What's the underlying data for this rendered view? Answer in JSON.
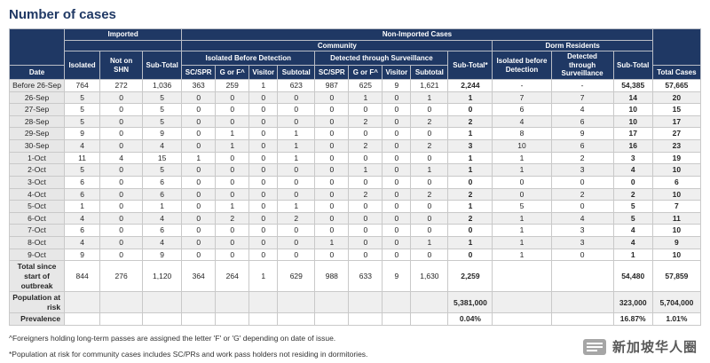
{
  "page": {
    "title": "Number of cases"
  },
  "colors": {
    "header_navy": "#1f3864",
    "title_blue": "#1f3864",
    "row_alt_grey": "#efefef",
    "date_column_grey": "#e7e7e7"
  },
  "table": {
    "header": {
      "date_label": "Date",
      "imported_label": "Imported",
      "non_imported_label": "Non-Imported Cases",
      "community_label": "Community",
      "dorm_label": "Dorm Residents",
      "total_cases_label": "Total Cases",
      "imported_cols": [
        "Isolated",
        "Not on SHN",
        "Sub-Total"
      ],
      "community_group_1": "Isolated Before Detection",
      "community_group_2": "Detected through Surveillance",
      "community_subtotal_label": "Sub-Total*",
      "breakdown_cols": [
        "SC/SPR",
        "G or F^",
        "Visitor",
        "Subtotal"
      ],
      "dorm_cols": [
        "Isolated before Detection",
        "Detected through Surveillance",
        "Sub-Total"
      ]
    },
    "rows": [
      {
        "date": "Before 26-Sep",
        "cells": [
          "764",
          "272",
          "1,036",
          "363",
          "259",
          "1",
          "623",
          "987",
          "625",
          "9",
          "1,621",
          "2,244",
          "-",
          "-",
          "54,385",
          "57,665"
        ]
      },
      {
        "date": "26-Sep",
        "cells": [
          "5",
          "0",
          "5",
          "0",
          "0",
          "0",
          "0",
          "0",
          "1",
          "0",
          "1",
          "1",
          "7",
          "7",
          "14",
          "20"
        ]
      },
      {
        "date": "27-Sep",
        "cells": [
          "5",
          "0",
          "5",
          "0",
          "0",
          "0",
          "0",
          "0",
          "0",
          "0",
          "0",
          "0",
          "6",
          "4",
          "10",
          "15"
        ]
      },
      {
        "date": "28-Sep",
        "cells": [
          "5",
          "0",
          "5",
          "0",
          "0",
          "0",
          "0",
          "0",
          "2",
          "0",
          "2",
          "2",
          "4",
          "6",
          "10",
          "17"
        ]
      },
      {
        "date": "29-Sep",
        "cells": [
          "9",
          "0",
          "9",
          "0",
          "1",
          "0",
          "1",
          "0",
          "0",
          "0",
          "0",
          "1",
          "8",
          "9",
          "17",
          "27"
        ]
      },
      {
        "date": "30-Sep",
        "cells": [
          "4",
          "0",
          "4",
          "0",
          "1",
          "0",
          "1",
          "0",
          "2",
          "0",
          "2",
          "3",
          "10",
          "6",
          "16",
          "23"
        ]
      },
      {
        "date": "1-Oct",
        "cells": [
          "11",
          "4",
          "15",
          "1",
          "0",
          "0",
          "1",
          "0",
          "0",
          "0",
          "0",
          "1",
          "1",
          "2",
          "3",
          "19"
        ]
      },
      {
        "date": "2-Oct",
        "cells": [
          "5",
          "0",
          "5",
          "0",
          "0",
          "0",
          "0",
          "0",
          "1",
          "0",
          "1",
          "1",
          "1",
          "3",
          "4",
          "10"
        ]
      },
      {
        "date": "3-Oct",
        "cells": [
          "6",
          "0",
          "6",
          "0",
          "0",
          "0",
          "0",
          "0",
          "0",
          "0",
          "0",
          "0",
          "0",
          "0",
          "0",
          "6"
        ]
      },
      {
        "date": "4-Oct",
        "cells": [
          "6",
          "0",
          "6",
          "0",
          "0",
          "0",
          "0",
          "0",
          "2",
          "0",
          "2",
          "2",
          "0",
          "2",
          "2",
          "10"
        ]
      },
      {
        "date": "5-Oct",
        "cells": [
          "1",
          "0",
          "1",
          "0",
          "1",
          "0",
          "1",
          "0",
          "0",
          "0",
          "0",
          "1",
          "5",
          "0",
          "5",
          "7"
        ]
      },
      {
        "date": "6-Oct",
        "cells": [
          "4",
          "0",
          "4",
          "0",
          "2",
          "0",
          "2",
          "0",
          "0",
          "0",
          "0",
          "2",
          "1",
          "4",
          "5",
          "11"
        ]
      },
      {
        "date": "7-Oct",
        "cells": [
          "6",
          "0",
          "6",
          "0",
          "0",
          "0",
          "0",
          "0",
          "0",
          "0",
          "0",
          "0",
          "1",
          "3",
          "4",
          "10"
        ]
      },
      {
        "date": "8-Oct",
        "cells": [
          "4",
          "0",
          "4",
          "0",
          "0",
          "0",
          "0",
          "1",
          "0",
          "0",
          "1",
          "1",
          "1",
          "3",
          "4",
          "9"
        ]
      },
      {
        "date": "9-Oct",
        "cells": [
          "9",
          "0",
          "9",
          "0",
          "0",
          "0",
          "0",
          "0",
          "0",
          "0",
          "0",
          "0",
          "1",
          "0",
          "1",
          "10"
        ]
      }
    ],
    "total_row": {
      "label": "Total since start of outbreak",
      "cells": [
        "844",
        "276",
        "1,120",
        "364",
        "264",
        "1",
        "629",
        "988",
        "633",
        "9",
        "1,630",
        "2,259",
        "",
        "",
        "54,480",
        "57,859"
      ]
    },
    "population_row": {
      "label": "Population at risk",
      "cells": [
        "",
        "",
        "",
        "",
        "",
        "",
        "",
        "",
        "",
        "",
        "",
        "5,381,000",
        "",
        "",
        "323,000",
        "5,704,000"
      ]
    },
    "prevalence_row": {
      "label": "Prevalence",
      "cells": [
        "",
        "",
        "",
        "",
        "",
        "",
        "",
        "",
        "",
        "",
        "",
        "0.04%",
        "",
        "",
        "16.87%",
        "1.01%"
      ]
    }
  },
  "footnotes": [
    "^Foreigners holding long-term passes are assigned the letter 'F' or 'G' depending on date of issue.",
    "*Population at risk for community cases includes SC/PRs and work pass holders not residing in dormitories."
  ],
  "watermark": {
    "text": "新加坡华人圈"
  }
}
